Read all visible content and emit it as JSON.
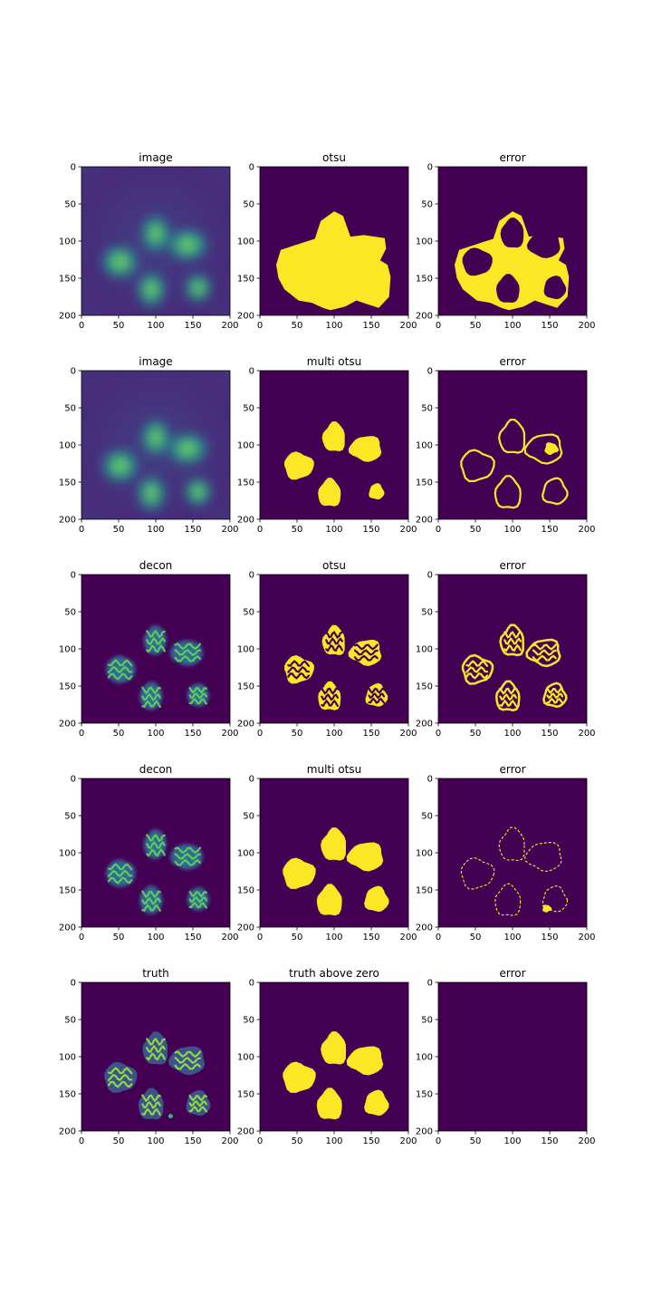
{
  "colors": {
    "background": "#440154",
    "foreground": "#fde725",
    "mid_green": "#21918c",
    "bright_green": "#5ec962",
    "frame": "#000000"
  },
  "colormap": "viridis",
  "chart_data": [
    {
      "type": "heatmap",
      "title": "image",
      "content": "blurred-cells",
      "xlim": [
        0,
        200
      ],
      "ylim": [
        200,
        0
      ],
      "xticks": [
        "0",
        "50",
        "100",
        "150",
        "200"
      ],
      "yticks": [
        "0",
        "50",
        "100",
        "150",
        "200"
      ]
    },
    {
      "type": "heatmap",
      "title": "otsu",
      "content": "mask-otsu-large",
      "xlim": [
        0,
        200
      ],
      "ylim": [
        200,
        0
      ],
      "xticks": [
        "0",
        "50",
        "100",
        "150",
        "200"
      ],
      "yticks": [
        "0",
        "50",
        "100",
        "150",
        "200"
      ]
    },
    {
      "type": "heatmap",
      "title": "error",
      "content": "error-large",
      "xlim": [
        0,
        200
      ],
      "ylim": [
        200,
        0
      ],
      "xticks": [
        "0",
        "50",
        "100",
        "150",
        "200"
      ],
      "yticks": [
        "0",
        "50",
        "100",
        "150",
        "200"
      ]
    },
    {
      "type": "heatmap",
      "title": "image",
      "content": "blurred-cells",
      "xlim": [
        0,
        200
      ],
      "ylim": [
        200,
        0
      ],
      "xticks": [
        "0",
        "50",
        "100",
        "150",
        "200"
      ],
      "yticks": [
        "0",
        "50",
        "100",
        "150",
        "200"
      ]
    },
    {
      "type": "heatmap",
      "title": "multi otsu",
      "content": "mask-blobs-partial",
      "xlim": [
        0,
        200
      ],
      "ylim": [
        200,
        0
      ],
      "xticks": [
        "0",
        "50",
        "100",
        "150",
        "200"
      ],
      "yticks": [
        "0",
        "50",
        "100",
        "150",
        "200"
      ]
    },
    {
      "type": "heatmap",
      "title": "error",
      "content": "error-outlines",
      "xlim": [
        0,
        200
      ],
      "ylim": [
        200,
        0
      ],
      "xticks": [
        "0",
        "50",
        "100",
        "150",
        "200"
      ],
      "yticks": [
        "0",
        "50",
        "100",
        "150",
        "200"
      ]
    },
    {
      "type": "heatmap",
      "title": "decon",
      "content": "decon-cells",
      "xlim": [
        0,
        200
      ],
      "ylim": [
        200,
        0
      ],
      "xticks": [
        "0",
        "50",
        "100",
        "150",
        "200"
      ],
      "yticks": [
        "0",
        "50",
        "100",
        "150",
        "200"
      ]
    },
    {
      "type": "heatmap",
      "title": "otsu",
      "content": "mask-speckled",
      "xlim": [
        0,
        200
      ],
      "ylim": [
        200,
        0
      ],
      "xticks": [
        "0",
        "50",
        "100",
        "150",
        "200"
      ],
      "yticks": [
        "0",
        "50",
        "100",
        "150",
        "200"
      ]
    },
    {
      "type": "heatmap",
      "title": "error",
      "content": "error-speckled",
      "xlim": [
        0,
        200
      ],
      "ylim": [
        200,
        0
      ],
      "xticks": [
        "0",
        "50",
        "100",
        "150",
        "200"
      ],
      "yticks": [
        "0",
        "50",
        "100",
        "150",
        "200"
      ]
    },
    {
      "type": "heatmap",
      "title": "decon",
      "content": "decon-cells",
      "xlim": [
        0,
        200
      ],
      "ylim": [
        200,
        0
      ],
      "xticks": [
        "0",
        "50",
        "100",
        "150",
        "200"
      ],
      "yticks": [
        "0",
        "50",
        "100",
        "150",
        "200"
      ]
    },
    {
      "type": "heatmap",
      "title": "multi otsu",
      "content": "mask-blobs-full",
      "xlim": [
        0,
        200
      ],
      "ylim": [
        200,
        0
      ],
      "xticks": [
        "0",
        "50",
        "100",
        "150",
        "200"
      ],
      "yticks": [
        "0",
        "50",
        "100",
        "150",
        "200"
      ]
    },
    {
      "type": "heatmap",
      "title": "error",
      "content": "error-thin",
      "xlim": [
        0,
        200
      ],
      "ylim": [
        200,
        0
      ],
      "xticks": [
        "0",
        "50",
        "100",
        "150",
        "200"
      ],
      "yticks": [
        "0",
        "50",
        "100",
        "150",
        "200"
      ]
    },
    {
      "type": "heatmap",
      "title": "truth",
      "content": "truth-cells",
      "xlim": [
        0,
        200
      ],
      "ylim": [
        200,
        0
      ],
      "xticks": [
        "0",
        "50",
        "100",
        "150",
        "200"
      ],
      "yticks": [
        "0",
        "50",
        "100",
        "150",
        "200"
      ]
    },
    {
      "type": "heatmap",
      "title": "truth above zero",
      "content": "mask-blobs-full",
      "xlim": [
        0,
        200
      ],
      "ylim": [
        200,
        0
      ],
      "xticks": [
        "0",
        "50",
        "100",
        "150",
        "200"
      ],
      "yticks": [
        "0",
        "50",
        "100",
        "150",
        "200"
      ]
    },
    {
      "type": "heatmap",
      "title": "error",
      "content": "empty",
      "xlim": [
        0,
        200
      ],
      "ylim": [
        200,
        0
      ],
      "xticks": [
        "0",
        "50",
        "100",
        "150",
        "200"
      ],
      "yticks": [
        "0",
        "50",
        "100",
        "150",
        "200"
      ]
    }
  ]
}
